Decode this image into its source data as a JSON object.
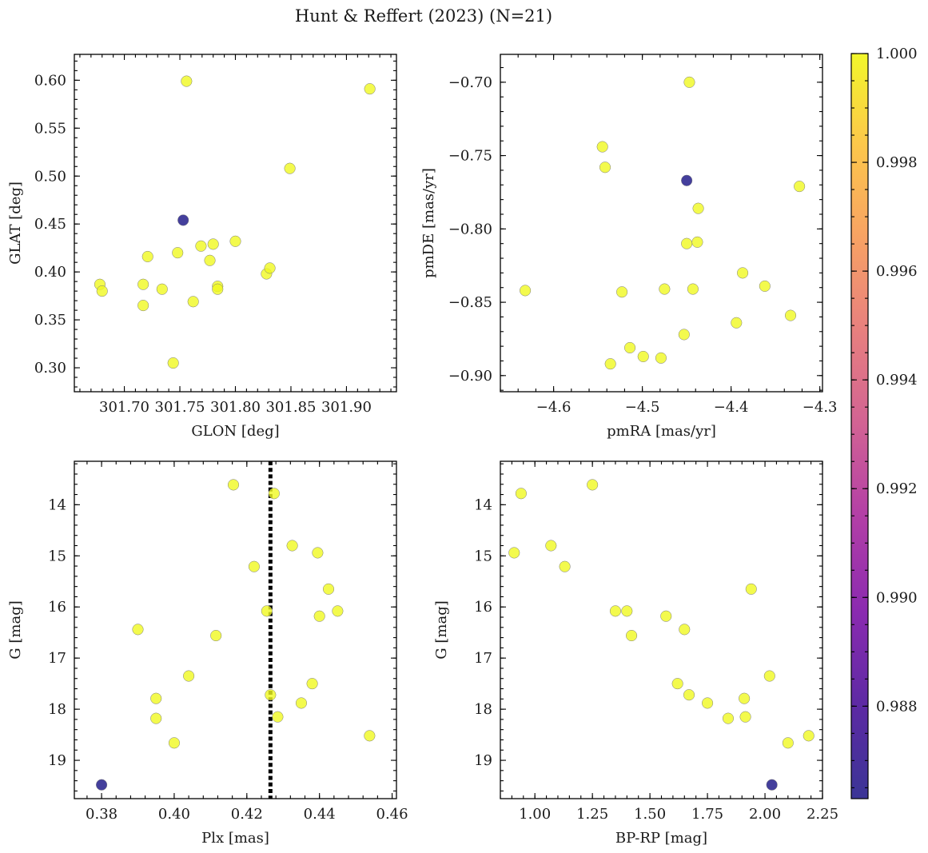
{
  "figure": {
    "title": "Hunt & Reffert (2023) (N=21)",
    "point_color_high": "#f0f921",
    "point_color_low": "#3a3597"
  },
  "colorbar": {
    "min": 0.9863,
    "max": 1.0,
    "ticks": [
      0.988,
      0.99,
      0.992,
      0.994,
      0.996,
      0.998,
      1.0
    ],
    "tick_labels": [
      "0.988",
      "0.990",
      "0.992",
      "0.994",
      "0.996",
      "0.998",
      "1.000"
    ],
    "colormap": "plasma"
  },
  "chart_data": [
    {
      "type": "scatter",
      "xlabel": "GLON [deg]",
      "ylabel": "GLAT [deg]",
      "xlim": [
        301.655,
        301.945
      ],
      "ylim": [
        0.275,
        0.627
      ],
      "xticks": [
        301.7,
        301.75,
        301.8,
        301.85,
        301.9
      ],
      "xtick_labels": [
        "301.70",
        "301.75",
        "301.80",
        "301.85",
        "301.90"
      ],
      "yticks": [
        0.3,
        0.35,
        0.4,
        0.45,
        0.5,
        0.55,
        0.6
      ],
      "ytick_labels": [
        "0.30",
        "0.35",
        "0.40",
        "0.45",
        "0.50",
        "0.55",
        "0.60"
      ],
      "y_inverted": false,
      "points": [
        {
          "x": 301.678,
          "y": 0.387,
          "c": 1.0
        },
        {
          "x": 301.68,
          "y": 0.38,
          "c": 1.0
        },
        {
          "x": 301.717,
          "y": 0.387,
          "c": 1.0
        },
        {
          "x": 301.717,
          "y": 0.365,
          "c": 1.0
        },
        {
          "x": 301.721,
          "y": 0.416,
          "c": 1.0
        },
        {
          "x": 301.734,
          "y": 0.382,
          "c": 1.0
        },
        {
          "x": 301.744,
          "y": 0.305,
          "c": 1.0
        },
        {
          "x": 301.748,
          "y": 0.42,
          "c": 1.0
        },
        {
          "x": 301.753,
          "y": 0.454,
          "c": 0.9865
        },
        {
          "x": 301.756,
          "y": 0.599,
          "c": 1.0
        },
        {
          "x": 301.762,
          "y": 0.369,
          "c": 1.0
        },
        {
          "x": 301.769,
          "y": 0.427,
          "c": 1.0
        },
        {
          "x": 301.777,
          "y": 0.412,
          "c": 1.0
        },
        {
          "x": 301.78,
          "y": 0.429,
          "c": 1.0
        },
        {
          "x": 301.784,
          "y": 0.385,
          "c": 1.0
        },
        {
          "x": 301.784,
          "y": 0.382,
          "c": 1.0
        },
        {
          "x": 301.8,
          "y": 0.432,
          "c": 1.0
        },
        {
          "x": 301.828,
          "y": 0.398,
          "c": 1.0
        },
        {
          "x": 301.831,
          "y": 0.404,
          "c": 1.0
        },
        {
          "x": 301.849,
          "y": 0.508,
          "c": 1.0
        },
        {
          "x": 301.921,
          "y": 0.591,
          "c": 1.0
        }
      ]
    },
    {
      "type": "scatter",
      "xlabel": "pmRA [mas/yr]",
      "ylabel": "pmDE [mas/yr]",
      "xlim": [
        -4.66,
        -4.297
      ],
      "ylim": [
        -0.911,
        -0.681
      ],
      "xticks": [
        -4.6,
        -4.5,
        -4.4,
        -4.3
      ],
      "xtick_labels": [
        "−4.6",
        "−4.5",
        "−4.4",
        "−4.3"
      ],
      "yticks": [
        -0.9,
        -0.85,
        -0.8,
        -0.75,
        -0.7
      ],
      "ytick_labels": [
        "−0.90",
        "−0.85",
        "−0.80",
        "−0.75",
        "−0.70"
      ],
      "y_inverted": false,
      "points": [
        {
          "x": -4.632,
          "y": -0.842,
          "c": 1.0
        },
        {
          "x": -4.545,
          "y": -0.744,
          "c": 1.0
        },
        {
          "x": -4.542,
          "y": -0.758,
          "c": 1.0
        },
        {
          "x": -4.536,
          "y": -0.892,
          "c": 1.0
        },
        {
          "x": -4.523,
          "y": -0.843,
          "c": 1.0
        },
        {
          "x": -4.514,
          "y": -0.881,
          "c": 1.0
        },
        {
          "x": -4.499,
          "y": -0.887,
          "c": 1.0
        },
        {
          "x": -4.479,
          "y": -0.888,
          "c": 1.0
        },
        {
          "x": -4.475,
          "y": -0.841,
          "c": 1.0
        },
        {
          "x": -4.453,
          "y": -0.872,
          "c": 1.0
        },
        {
          "x": -4.45,
          "y": -0.767,
          "c": 0.9865
        },
        {
          "x": -4.45,
          "y": -0.81,
          "c": 1.0
        },
        {
          "x": -4.447,
          "y": -0.7,
          "c": 1.0
        },
        {
          "x": -4.443,
          "y": -0.841,
          "c": 1.0
        },
        {
          "x": -4.438,
          "y": -0.809,
          "c": 1.0
        },
        {
          "x": -4.437,
          "y": -0.786,
          "c": 1.0
        },
        {
          "x": -4.394,
          "y": -0.864,
          "c": 1.0
        },
        {
          "x": -4.387,
          "y": -0.83,
          "c": 1.0
        },
        {
          "x": -4.362,
          "y": -0.839,
          "c": 1.0
        },
        {
          "x": -4.333,
          "y": -0.859,
          "c": 1.0
        },
        {
          "x": -4.323,
          "y": -0.771,
          "c": 1.0
        }
      ]
    },
    {
      "type": "scatter",
      "xlabel": "Plx [mas]",
      "ylabel": "G [mag]",
      "xlim": [
        0.3725,
        0.4612
      ],
      "ylim": [
        19.75,
        13.15
      ],
      "xticks": [
        0.38,
        0.4,
        0.42,
        0.44,
        0.46
      ],
      "xtick_labels": [
        "0.38",
        "0.40",
        "0.42",
        "0.44",
        "0.46"
      ],
      "yticks": [
        14,
        15,
        16,
        17,
        18,
        19
      ],
      "ytick_labels": [
        "14",
        "15",
        "16",
        "17",
        "18",
        "19"
      ],
      "y_inverted": true,
      "vline": {
        "x": 0.4265,
        "style": "dotted"
      },
      "points": [
        {
          "x": 0.38,
          "y": 19.48,
          "c": 0.9865
        },
        {
          "x": 0.39,
          "y": 16.44,
          "c": 1.0
        },
        {
          "x": 0.395,
          "y": 17.79,
          "c": 1.0
        },
        {
          "x": 0.395,
          "y": 18.18,
          "c": 1.0
        },
        {
          "x": 0.4,
          "y": 18.66,
          "c": 1.0
        },
        {
          "x": 0.404,
          "y": 17.35,
          "c": 1.0
        },
        {
          "x": 0.4115,
          "y": 16.56,
          "c": 1.0
        },
        {
          "x": 0.4163,
          "y": 13.61,
          "c": 1.0
        },
        {
          "x": 0.422,
          "y": 15.21,
          "c": 1.0
        },
        {
          "x": 0.4255,
          "y": 16.08,
          "c": 1.0
        },
        {
          "x": 0.4265,
          "y": 17.72,
          "c": 1.0
        },
        {
          "x": 0.4275,
          "y": 13.78,
          "c": 1.0
        },
        {
          "x": 0.4285,
          "y": 18.15,
          "c": 1.0
        },
        {
          "x": 0.4325,
          "y": 14.8,
          "c": 1.0
        },
        {
          "x": 0.435,
          "y": 17.88,
          "c": 1.0
        },
        {
          "x": 0.438,
          "y": 17.5,
          "c": 1.0
        },
        {
          "x": 0.4395,
          "y": 14.94,
          "c": 1.0
        },
        {
          "x": 0.44,
          "y": 16.18,
          "c": 1.0
        },
        {
          "x": 0.4425,
          "y": 15.65,
          "c": 1.0
        },
        {
          "x": 0.445,
          "y": 16.08,
          "c": 1.0
        },
        {
          "x": 0.4538,
          "y": 18.52,
          "c": 1.0
        }
      ]
    },
    {
      "type": "scatter",
      "xlabel": "BP-RP [mag]",
      "ylabel": "G [mag]",
      "xlim": [
        0.85,
        2.25
      ],
      "ylim": [
        19.75,
        13.15
      ],
      "xticks": [
        1.0,
        1.25,
        1.5,
        1.75,
        2.0,
        2.25
      ],
      "xtick_labels": [
        "1.00",
        "1.25",
        "1.50",
        "1.75",
        "2.00",
        "2.25"
      ],
      "yticks": [
        14,
        15,
        16,
        17,
        18,
        19
      ],
      "ytick_labels": [
        "14",
        "15",
        "16",
        "17",
        "18",
        "19"
      ],
      "y_inverted": true,
      "points": [
        {
          "x": 0.91,
          "y": 14.94,
          "c": 1.0
        },
        {
          "x": 0.94,
          "y": 13.78,
          "c": 1.0
        },
        {
          "x": 1.07,
          "y": 14.8,
          "c": 1.0
        },
        {
          "x": 1.13,
          "y": 15.21,
          "c": 1.0
        },
        {
          "x": 1.25,
          "y": 13.61,
          "c": 1.0
        },
        {
          "x": 1.35,
          "y": 16.08,
          "c": 1.0
        },
        {
          "x": 1.4,
          "y": 16.08,
          "c": 1.0
        },
        {
          "x": 1.42,
          "y": 16.56,
          "c": 1.0
        },
        {
          "x": 1.57,
          "y": 16.18,
          "c": 1.0
        },
        {
          "x": 1.62,
          "y": 17.5,
          "c": 1.0
        },
        {
          "x": 1.65,
          "y": 16.44,
          "c": 1.0
        },
        {
          "x": 1.67,
          "y": 17.72,
          "c": 1.0
        },
        {
          "x": 1.75,
          "y": 17.88,
          "c": 1.0
        },
        {
          "x": 1.84,
          "y": 18.18,
          "c": 1.0
        },
        {
          "x": 1.91,
          "y": 17.79,
          "c": 1.0
        },
        {
          "x": 1.915,
          "y": 18.15,
          "c": 1.0
        },
        {
          "x": 1.94,
          "y": 15.65,
          "c": 1.0
        },
        {
          "x": 2.02,
          "y": 17.35,
          "c": 1.0
        },
        {
          "x": 2.03,
          "y": 19.48,
          "c": 0.9865
        },
        {
          "x": 2.1,
          "y": 18.66,
          "c": 1.0
        },
        {
          "x": 2.19,
          "y": 18.52,
          "c": 1.0
        }
      ]
    }
  ]
}
